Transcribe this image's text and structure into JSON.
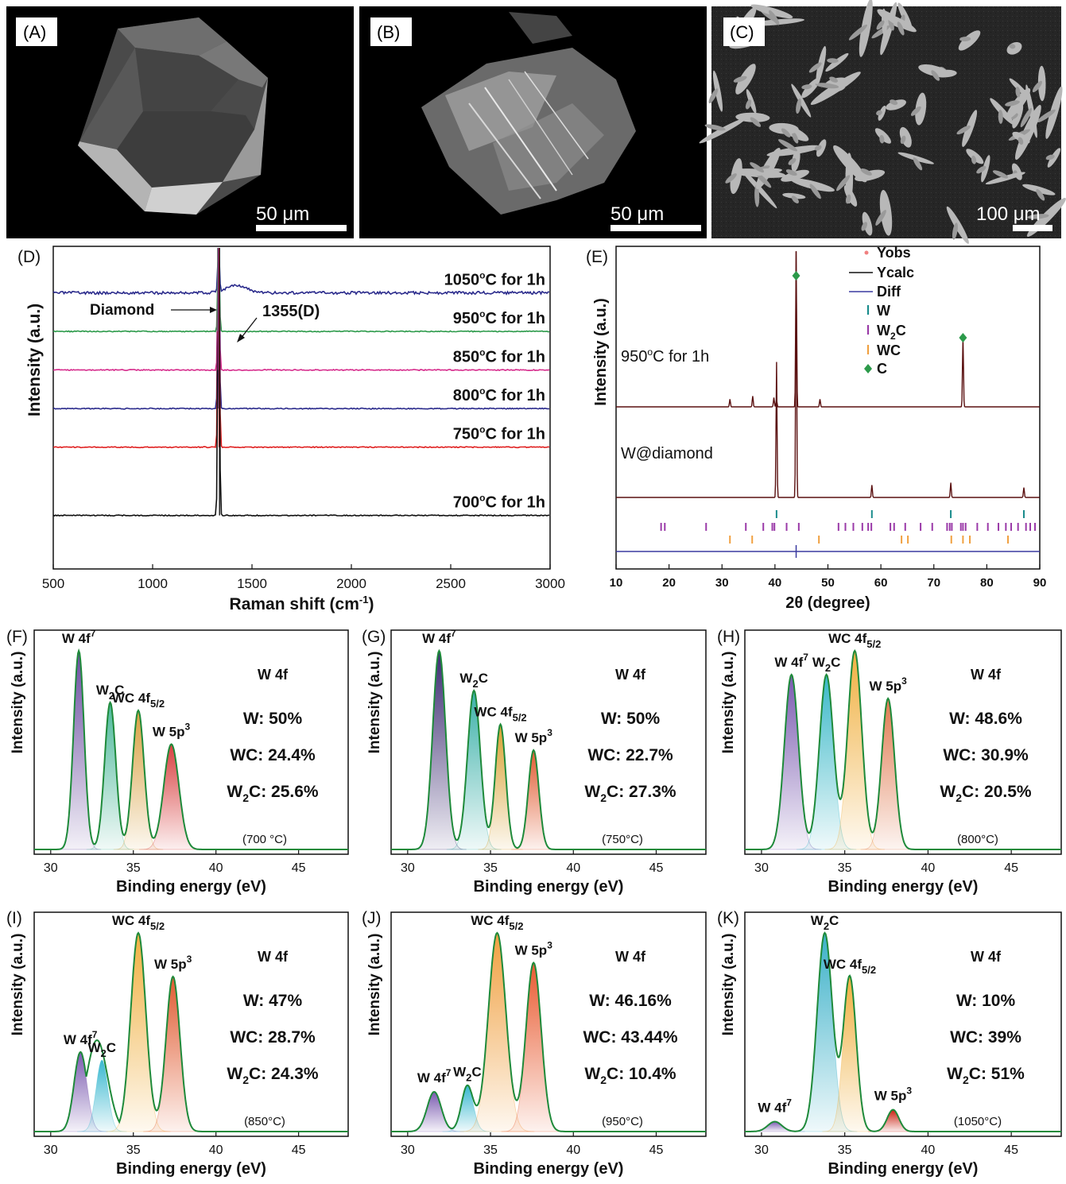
{
  "sem_panels": [
    {
      "label": "(A)",
      "scale": "50 μm"
    },
    {
      "label": "(B)",
      "scale": "50 μm"
    },
    {
      "label": "(C)",
      "scale": "100 μm"
    }
  ],
  "chart_data": [
    {
      "panel": "(D)",
      "type": "line",
      "xlabel": "Raman shift (cm",
      "xlabel_sup": "-1",
      "xlabel_end": ")",
      "ylabel": "Intensity (a.u.)",
      "xlim": [
        500,
        3000
      ],
      "xticks": [
        "500",
        "1000",
        "1500",
        "2000",
        "2500",
        "3000"
      ],
      "peak_x": 1332,
      "annotations": {
        "diamond": "Diamond",
        "d_band": "1355(D)"
      },
      "series": [
        {
          "name": "1050",
          "suffix": "C for 1h",
          "baseline": 0.85,
          "color": "#2b2b8c",
          "bump_x": 1420
        },
        {
          "name": "950",
          "suffix": "C for 1h",
          "baseline": 0.72,
          "color": "#2c9a4a"
        },
        {
          "name": "850",
          "suffix": "C for 1h",
          "baseline": 0.59,
          "color": "#d62c8c"
        },
        {
          "name": "800",
          "suffix": "C for 1h",
          "baseline": 0.46,
          "color": "#2b2b8c"
        },
        {
          "name": "750",
          "suffix": "C for 1h",
          "baseline": 0.33,
          "color": "#e02020"
        },
        {
          "name": "700",
          "suffix": "C for 1h",
          "baseline": 0.1,
          "color": "#111111"
        }
      ]
    },
    {
      "panel": "(E)",
      "type": "line",
      "xlabel": "2θ (degree)",
      "ylabel": "Intensity (a.u.)",
      "xlim": [
        10,
        90
      ],
      "xticks": [
        "10",
        "20",
        "30",
        "40",
        "50",
        "60",
        "70",
        "80",
        "90"
      ],
      "series_labels": [
        "950",
        "C for 1h",
        "W@diamond"
      ],
      "legend": [
        {
          "name": "Yobs",
          "color": "#f08080",
          "mark": "dot"
        },
        {
          "name": "Ycalc",
          "color": "#111111",
          "mark": "line"
        },
        {
          "name": "Diff",
          "color": "#3a3aa0",
          "mark": "line"
        },
        {
          "name": "W",
          "color": "#1a8c8c",
          "mark": "tick"
        },
        {
          "name": "W",
          "sub": "2",
          "name_end": "C",
          "color": "#9a3aa8",
          "mark": "tick"
        },
        {
          "name": "WC",
          "color": "#f0a040",
          "mark": "tick"
        },
        {
          "name": "C",
          "color": "#2c9a4a",
          "mark": "diamond"
        }
      ],
      "peaks_950": [
        [
          31.5,
          0.05
        ],
        [
          35.8,
          0.07
        ],
        [
          39.8,
          0.06
        ],
        [
          40.3,
          0.05
        ],
        [
          44.0,
          1.0
        ],
        [
          48.5,
          0.05
        ],
        [
          75.5,
          0.45
        ]
      ],
      "peaks_wd": [
        [
          40.3,
          0.55
        ],
        [
          44.0,
          1.0
        ],
        [
          58.3,
          0.05
        ],
        [
          73.2,
          0.06
        ],
        [
          87.0,
          0.04
        ]
      ],
      "ticks_W": [
        40.3,
        58.3,
        73.2,
        87.0
      ],
      "ticks_W2C": [
        18.5,
        19.2,
        27.0,
        34.5,
        37.8,
        39.5,
        39.9,
        42.2,
        44.5,
        52.0,
        53.3,
        54.8,
        56.5,
        57.6,
        58.2,
        61.8,
        62.5,
        64.6,
        67.5,
        69.7,
        72.5,
        73.0,
        73.4,
        75.1,
        75.5,
        76.0,
        78.2,
        80.2,
        82.2,
        83.6,
        84.6,
        85.9,
        87.4,
        88.2,
        89.1
      ],
      "ticks_WC": [
        31.5,
        35.7,
        48.3,
        63.9,
        65.1,
        73.3,
        75.5,
        76.8,
        84.0
      ],
      "c_markers": [
        44.0,
        75.5
      ]
    },
    {
      "panel": "(F)",
      "type": "area",
      "xlabel": "Binding energy (eV)",
      "ylabel": "Intensity (a.u.)",
      "xlim": [
        29,
        48
      ],
      "xticks": [
        "30",
        "35",
        "40",
        "45"
      ],
      "title": "W 4f",
      "temperature": "(700 °C)",
      "stats": [
        {
          "label": "W: 50%"
        },
        {
          "label": "WC: 24.4%"
        },
        {
          "label": "W",
          "sub": "2",
          "label_end": "C: 25.6%"
        }
      ],
      "peaks": [
        {
          "center": 31.7,
          "height": 1.0,
          "width": 0.45,
          "label": "W 4f",
          "label_sup": "7",
          "color": "#6a4ca0"
        },
        {
          "center": 33.6,
          "height": 0.74,
          "width": 0.48,
          "label": "W",
          "label_sub": "2",
          "label_end": "C",
          "color": "#4cb89a"
        },
        {
          "center": 35.3,
          "height": 0.7,
          "width": 0.5,
          "label": "WC 4f",
          "label_sub": "5/2",
          "color": "#d8a040"
        },
        {
          "center": 37.3,
          "height": 0.53,
          "width": 0.65,
          "label": "W 5p",
          "label_sup": "3",
          "color": "#d84040"
        }
      ]
    },
    {
      "panel": "(G)",
      "type": "area",
      "xlabel": "Binding energy (eV)",
      "ylabel": "Intensity (a.u.)",
      "xlim": [
        29,
        48
      ],
      "xticks": [
        "30",
        "35",
        "40",
        "45"
      ],
      "title": "W 4f",
      "temperature": "(750°C)",
      "stats": [
        {
          "label": "W: 50%"
        },
        {
          "label": "WC: 22.7%"
        },
        {
          "label": "W",
          "sub": "2",
          "label_end": "C: 27.3%"
        }
      ],
      "peaks": [
        {
          "center": 31.9,
          "height": 1.0,
          "width": 0.55,
          "label": "W 4f",
          "label_sup": "7",
          "color": "#3a2a70"
        },
        {
          "center": 34.0,
          "height": 0.8,
          "width": 0.55,
          "label": "W",
          "label_sub": "2",
          "label_end": "C",
          "color": "#3ab0a8"
        },
        {
          "center": 35.6,
          "height": 0.63,
          "width": 0.45,
          "label": "WC 4f",
          "label_sub": "5/2",
          "color": "#d8a030"
        },
        {
          "center": 37.6,
          "height": 0.5,
          "width": 0.45,
          "label": "W 5p",
          "label_sup": "3",
          "color": "#e05a30"
        }
      ]
    },
    {
      "panel": "(H)",
      "type": "area",
      "xlabel": "Binding energy (eV)",
      "ylabel": "Intensity (a.u.)",
      "xlim": [
        29,
        48
      ],
      "xticks": [
        "30",
        "35",
        "40",
        "45"
      ],
      "title": "W 4f",
      "temperature": "(800°C)",
      "stats": [
        {
          "label": "W: 48.6%"
        },
        {
          "label": "WC: 30.9%"
        },
        {
          "label": "W",
          "sub": "2",
          "label_end": "C: 20.5%"
        }
      ],
      "peaks": [
        {
          "center": 31.8,
          "height": 0.88,
          "width": 0.6,
          "label": "W 4f",
          "label_sup": "7",
          "color": "#7a5ab0"
        },
        {
          "center": 33.9,
          "height": 0.88,
          "width": 0.6,
          "label": "W",
          "label_sub": "2",
          "label_end": "C",
          "color": "#3ab8c8"
        },
        {
          "center": 35.6,
          "height": 1.0,
          "width": 0.6,
          "label": "WC 4f",
          "label_sub": "5/2",
          "color": "#f0b040"
        },
        {
          "center": 37.6,
          "height": 0.76,
          "width": 0.55,
          "label": "W 5p",
          "label_sup": "3",
          "color": "#e07a50"
        }
      ]
    },
    {
      "panel": "(I)",
      "type": "area",
      "xlabel": "Binding energy (eV)",
      "ylabel": "Intensity (a.u.)",
      "xlim": [
        29,
        48
      ],
      "xticks": [
        "30",
        "35",
        "40",
        "45"
      ],
      "title": "W 4f",
      "temperature": "(850°C)",
      "stats": [
        {
          "label": "W: 47%"
        },
        {
          "label": "WC: 28.7%"
        },
        {
          "label": "W",
          "sub": "2",
          "label_end": "C: 24.3%"
        }
      ],
      "peaks": [
        {
          "center": 31.8,
          "height": 0.4,
          "width": 0.55,
          "label": "W 4f",
          "label_sup": "7",
          "color": "#7a5ab0"
        },
        {
          "center": 33.1,
          "height": 0.36,
          "width": 0.5,
          "label": "W",
          "label_sub": "2",
          "label_end": "C",
          "color": "#3ab8d0"
        },
        {
          "center": 35.3,
          "height": 1.0,
          "width": 0.65,
          "label": "WC 4f",
          "label_sub": "5/2",
          "color": "#f0b040"
        },
        {
          "center": 37.4,
          "height": 0.78,
          "width": 0.6,
          "label": "W 5p",
          "label_sup": "3",
          "color": "#e05a30"
        }
      ],
      "envelope_extra": [
        {
          "center": 32.8,
          "height": 0.46,
          "width": 0.9
        }
      ]
    },
    {
      "panel": "(J)",
      "type": "area",
      "xlabel": "Binding energy (eV)",
      "ylabel": "Intensity (a.u.)",
      "xlim": [
        29,
        48
      ],
      "xticks": [
        "30",
        "35",
        "40",
        "45"
      ],
      "title": "W 4f",
      "temperature": "(950°C)",
      "stats": [
        {
          "label": "W: 46.16%"
        },
        {
          "label": "WC: 43.44%"
        },
        {
          "label": "W",
          "sub": "2",
          "label_end": "C: 10.4%"
        }
      ],
      "peaks": [
        {
          "center": 31.6,
          "height": 0.2,
          "width": 0.6,
          "label": "W 4f",
          "label_sup": "7",
          "color": "#7a5ab0"
        },
        {
          "center": 33.6,
          "height": 0.23,
          "width": 0.5,
          "label": "W",
          "label_sub": "2",
          "label_end": "C",
          "color": "#3ab8d0"
        },
        {
          "center": 35.4,
          "height": 1.0,
          "width": 0.75,
          "label": "WC 4f",
          "label_sub": "5/2",
          "color": "#f0a040"
        },
        {
          "center": 37.6,
          "height": 0.85,
          "width": 0.65,
          "label": "W 5p",
          "label_sup": "3",
          "color": "#e85a30"
        }
      ]
    },
    {
      "panel": "(K)",
      "type": "area",
      "xlabel": "Binding energy (eV)",
      "ylabel": "Intensity (a.u.)",
      "xlim": [
        29,
        48
      ],
      "xticks": [
        "30",
        "35",
        "40",
        "45"
      ],
      "title": "W 4f",
      "temperature": "(1050°C)",
      "stats": [
        {
          "label": "W: 10%"
        },
        {
          "label": "WC: 39%"
        },
        {
          "label": "W",
          "sub": "2",
          "label_end": "C: 51%"
        }
      ],
      "peaks": [
        {
          "center": 30.8,
          "height": 0.05,
          "width": 0.6,
          "label": "W 4f",
          "label_sup": "7",
          "color": "#7a5ab0"
        },
        {
          "center": 33.8,
          "height": 1.0,
          "width": 0.65,
          "label": "W",
          "label_sub": "2",
          "label_end": "C",
          "color": "#3ab0c8"
        },
        {
          "center": 35.3,
          "height": 0.78,
          "width": 0.55,
          "label": "WC 4f",
          "label_sub": "5/2",
          "color": "#f0b040"
        },
        {
          "center": 37.9,
          "height": 0.11,
          "width": 0.5,
          "label": "W 5p",
          "label_sup": "3",
          "color": "#c82010"
        }
      ]
    }
  ],
  "units": {
    "degree_mark": "o"
  }
}
